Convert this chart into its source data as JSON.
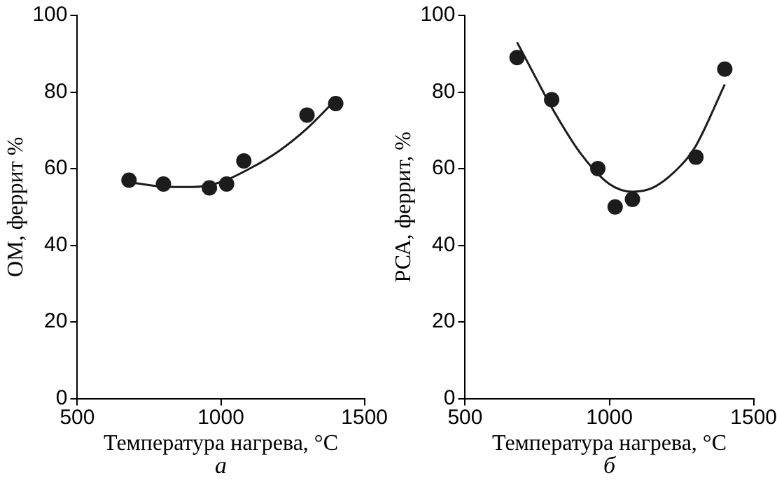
{
  "chart_data": [
    {
      "type": "scatter",
      "xlabel": "Температура нагрева, °C",
      "ylabel": "ОМ, феррит %",
      "annotations": [
        "а"
      ],
      "xlim": [
        500,
        1500
      ],
      "xticks": [
        500,
        1000,
        1500
      ],
      "ylim": [
        0,
        100
      ],
      "yticks": [
        0,
        20,
        40,
        60,
        80,
        100
      ],
      "grid": false,
      "legend": false,
      "marker": "circle",
      "series": [
        {
          "type": "scatter",
          "color": "#1c1c1c",
          "x": [
            680,
            800,
            960,
            1020,
            1080,
            1300,
            1400
          ],
          "values": [
            57,
            56,
            55,
            56,
            62,
            74,
            77
          ]
        },
        {
          "type": "line",
          "color": "#1c1c1c",
          "line_style": "solid",
          "marker": "none",
          "x": [
            680,
            800,
            900,
            1000,
            1100,
            1200,
            1300,
            1400
          ],
          "values": [
            56.5,
            55.3,
            55.2,
            56.5,
            60,
            64.5,
            70.5,
            78
          ]
        }
      ]
    },
    {
      "type": "scatter",
      "xlabel": "Температура нагрева, °C",
      "ylabel": "РСА, феррит, %",
      "annotations": [
        "б"
      ],
      "xlim": [
        500,
        1500
      ],
      "xticks": [
        500,
        1000,
        1500
      ],
      "ylim": [
        0,
        100
      ],
      "yticks": [
        0,
        20,
        40,
        60,
        80,
        100
      ],
      "grid": false,
      "legend": false,
      "marker": "circle",
      "series": [
        {
          "type": "scatter",
          "color": "#1c1c1c",
          "x": [
            680,
            800,
            960,
            1020,
            1080,
            1300,
            1400
          ],
          "values": [
            89,
            78,
            60,
            50,
            52,
            63,
            86
          ]
        },
        {
          "type": "line",
          "color": "#1c1c1c",
          "line_style": "solid",
          "marker": "none",
          "x": [
            680,
            750,
            800,
            900,
            1000,
            1080,
            1150,
            1250,
            1300,
            1400
          ],
          "values": [
            93,
            83,
            76,
            64,
            56,
            54,
            55,
            61,
            66,
            82
          ]
        }
      ]
    }
  ]
}
